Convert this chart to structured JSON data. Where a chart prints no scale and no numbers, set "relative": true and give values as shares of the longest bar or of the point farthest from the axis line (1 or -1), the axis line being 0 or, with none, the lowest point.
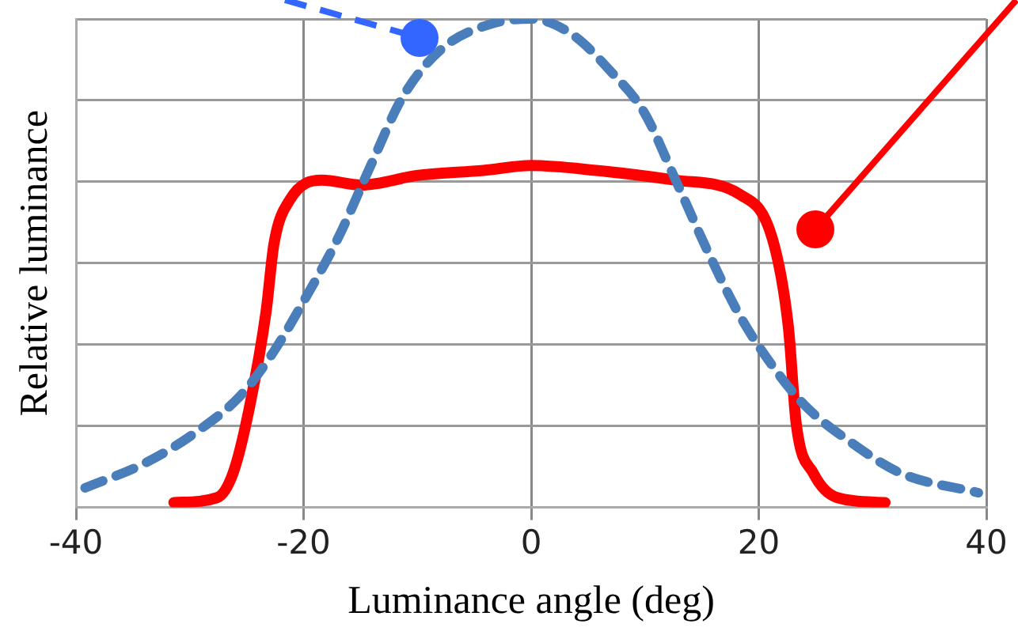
{
  "chart_data": {
    "type": "line",
    "xlabel": "Luminance angle (deg)",
    "ylabel": "Relative luminance",
    "relative": true,
    "xlim": [
      -40,
      40
    ],
    "xticks": [
      -40,
      -20,
      0,
      20,
      40
    ],
    "grid": true,
    "legend": false,
    "marker": "none",
    "series": [
      {
        "color": "#4a7ebb",
        "line_style": "dashed",
        "x": [
          -39.2,
          -34,
          -29.7,
          -25.5,
          -22.6,
          -19.8,
          -17,
          -14.1,
          -11.3,
          -7.8,
          -3.5,
          0,
          3.5,
          7.1,
          9.9,
          12.7,
          15.6,
          18.4,
          21.2,
          24,
          28.3,
          32.5,
          39.3
        ],
        "values": [
          0.04,
          0.09,
          0.15,
          0.23,
          0.32,
          0.43,
          0.55,
          0.7,
          0.84,
          0.94,
          0.99,
          1,
          0.97,
          0.89,
          0.81,
          0.67,
          0.52,
          0.39,
          0.29,
          0.21,
          0.13,
          0.07,
          0.03
        ]
      },
      {
        "color": "#ff0000",
        "line_style": "solid",
        "x": [
          -31.4,
          -27.6,
          -26.2,
          -24.8,
          -23.3,
          -22.6,
          -21.2,
          -18.4,
          -14.9,
          -9.9,
          -4.2,
          0,
          5.7,
          12.7,
          18.4,
          21.2,
          22.6,
          23.3,
          24.8,
          26.9,
          31.1
        ],
        "values": [
          0.01,
          0.02,
          0.07,
          0.2,
          0.4,
          0.54,
          0.63,
          0.67,
          0.66,
          0.68,
          0.69,
          0.7,
          0.69,
          0.67,
          0.64,
          0.55,
          0.37,
          0.17,
          0.07,
          0.02,
          0.01
        ]
      }
    ]
  }
}
